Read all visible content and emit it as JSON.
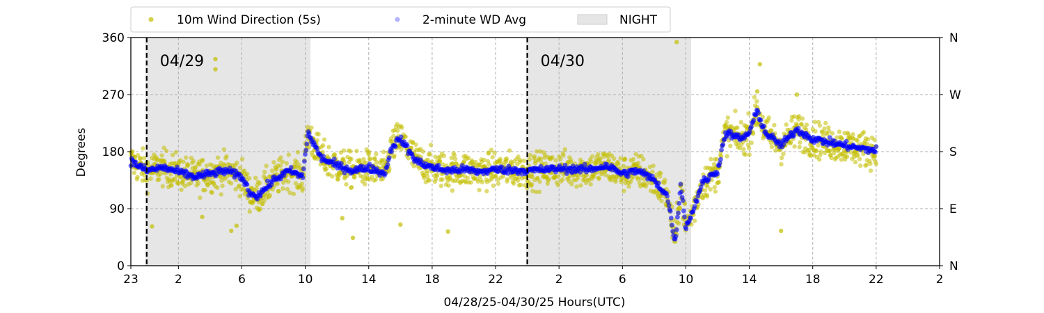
{
  "chart_data": {
    "type": "scatter",
    "title": "",
    "xlabel": "04/28/25-04/30/25  Hours(UTC)",
    "ylabel": "Degrees",
    "ylim": [
      0,
      360
    ],
    "x_unit": "hours_utc",
    "xlim": [
      "2025-04-28T23:00",
      "2025-05-01T02:00"
    ],
    "x_tick_labels": [
      "23",
      "2",
      "6",
      "10",
      "14",
      "18",
      "22",
      "2",
      "6",
      "10",
      "14",
      "18",
      "22",
      "2"
    ],
    "x_ticks": [
      "2025-04-28T23:00",
      "2025-04-29T02:00",
      "2025-04-29T06:00",
      "2025-04-29T10:00",
      "2025-04-29T14:00",
      "2025-04-29T18:00",
      "2025-04-29T22:00",
      "2025-04-30T02:00",
      "2025-04-30T06:00",
      "2025-04-30T10:00",
      "2025-04-30T14:00",
      "2025-04-30T18:00",
      "2025-04-30T22:00",
      "2025-05-01T02:00"
    ],
    "y_ticks": [
      0,
      90,
      180,
      270,
      360
    ],
    "y_tick_labels": [
      "0",
      "90",
      "180",
      "270",
      "360"
    ],
    "right_y_tick_labels": [
      "N",
      "E",
      "S",
      "W",
      "N"
    ],
    "grid": true,
    "legend_position": "top-center (outside plot)",
    "legend": [
      {
        "label": "10m Wind Direction (5s)",
        "marker": "dot",
        "color": "#c2bd00"
      },
      {
        "label": "2-minute WD Avg",
        "marker": "dot",
        "color": "#0000ff"
      },
      {
        "label": "NIGHT",
        "marker": "patch",
        "color": "#e6e6e6"
      }
    ],
    "night_periods": [
      {
        "start": "2025-04-28T23:55",
        "end": "2025-04-29T10:20"
      },
      {
        "start": "2025-04-29T23:55",
        "end": "2025-04-30T10:20"
      }
    ],
    "day_separators": [
      {
        "time": "2025-04-29T00:00",
        "label": "04/29"
      },
      {
        "time": "2025-04-30T00:00",
        "label": "04/30"
      }
    ],
    "series": [
      {
        "name": "2-minute WD Avg",
        "color": "#0000ff",
        "points": [
          [
            "2025-04-28T23:00",
            165
          ],
          [
            "2025-04-29T00:00",
            150
          ],
          [
            "2025-04-29T01:00",
            155
          ],
          [
            "2025-04-29T02:00",
            148
          ],
          [
            "2025-04-29T03:00",
            140
          ],
          [
            "2025-04-29T04:00",
            145
          ],
          [
            "2025-04-29T05:00",
            150
          ],
          [
            "2025-04-29T06:00",
            140
          ],
          [
            "2025-04-29T06:30",
            115
          ],
          [
            "2025-04-29T07:00",
            110
          ],
          [
            "2025-04-29T08:00",
            135
          ],
          [
            "2025-04-29T09:00",
            150
          ],
          [
            "2025-04-29T09:50",
            140
          ],
          [
            "2025-04-29T10:10",
            210
          ],
          [
            "2025-04-29T11:00",
            170
          ],
          [
            "2025-04-29T12:00",
            158
          ],
          [
            "2025-04-29T13:00",
            150
          ],
          [
            "2025-04-29T14:00",
            155
          ],
          [
            "2025-04-29T15:00",
            145
          ],
          [
            "2025-04-29T15:30",
            190
          ],
          [
            "2025-04-29T16:00",
            200
          ],
          [
            "2025-04-29T17:00",
            165
          ],
          [
            "2025-04-29T18:00",
            155
          ],
          [
            "2025-04-29T19:00",
            150
          ],
          [
            "2025-04-29T20:00",
            152
          ],
          [
            "2025-04-29T21:00",
            148
          ],
          [
            "2025-04-29T22:00",
            152
          ],
          [
            "2025-04-30T00:00",
            150
          ],
          [
            "2025-04-30T02:00",
            153
          ],
          [
            "2025-04-30T04:00",
            152
          ],
          [
            "2025-04-30T05:00",
            158
          ],
          [
            "2025-04-30T06:00",
            145
          ],
          [
            "2025-04-30T07:00",
            150
          ],
          [
            "2025-04-30T08:00",
            135
          ],
          [
            "2025-04-30T08:50",
            110
          ],
          [
            "2025-04-30T09:20",
            35
          ],
          [
            "2025-04-30T09:40",
            130
          ],
          [
            "2025-04-30T10:00",
            60
          ],
          [
            "2025-04-30T10:30",
            90
          ],
          [
            "2025-04-30T11:00",
            130
          ],
          [
            "2025-04-30T12:00",
            150
          ],
          [
            "2025-04-30T12:30",
            210
          ],
          [
            "2025-04-30T13:30",
            200
          ],
          [
            "2025-04-30T14:00",
            210
          ],
          [
            "2025-04-30T14:30",
            245
          ],
          [
            "2025-04-30T15:00",
            210
          ],
          [
            "2025-04-30T16:00",
            190
          ],
          [
            "2025-04-30T17:00",
            215
          ],
          [
            "2025-04-30T18:00",
            200
          ],
          [
            "2025-04-30T19:00",
            195
          ],
          [
            "2025-04-30T20:00",
            190
          ],
          [
            "2025-04-30T21:00",
            185
          ],
          [
            "2025-04-30T22:00",
            182
          ]
        ]
      },
      {
        "name": "10m Wind Direction (5s)",
        "color": "#c2bd00",
        "spread_degrees": 28,
        "outliers": [
          [
            "2025-04-29T00:20",
            62
          ],
          [
            "2025-04-29T04:20",
            326
          ],
          [
            "2025-04-29T04:20",
            310
          ],
          [
            "2025-04-29T03:30",
            77
          ],
          [
            "2025-04-29T05:40",
            63
          ],
          [
            "2025-04-29T05:20",
            55
          ],
          [
            "2025-04-29T08:30",
            150
          ],
          [
            "2025-04-29T13:00",
            44
          ],
          [
            "2025-04-29T12:20",
            75
          ],
          [
            "2025-04-29T19:00",
            54
          ],
          [
            "2025-04-29T16:00",
            65
          ],
          [
            "2025-04-30T09:25",
            353
          ],
          [
            "2025-04-30T14:40",
            318
          ],
          [
            "2025-04-30T16:00",
            55
          ],
          [
            "2025-04-30T14:30",
            275
          ],
          [
            "2025-04-30T17:00",
            270
          ]
        ]
      }
    ]
  }
}
